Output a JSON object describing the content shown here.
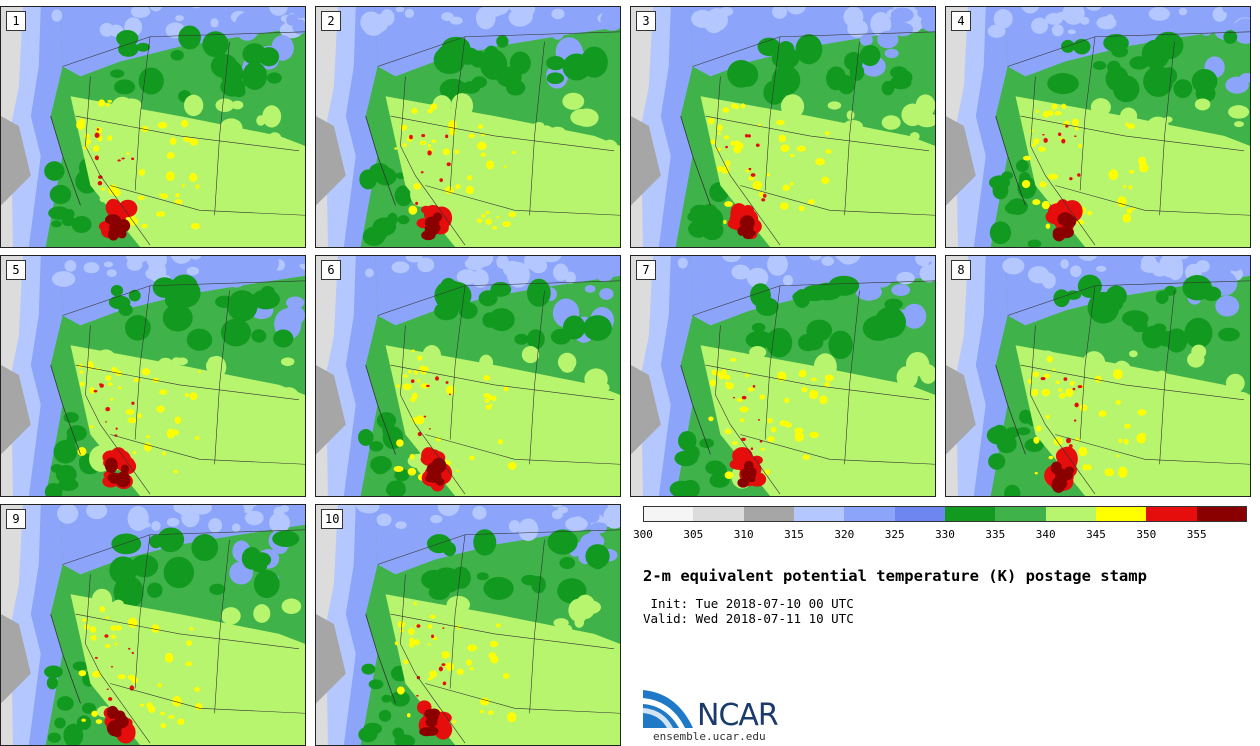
{
  "title": "2-m equivalent potential temperature (K) postage stamp",
  "init_label": " Init: Tue 2018-07-10 00 UTC",
  "valid_label": "Valid: Wed 2018-07-11 10 UTC",
  "panels": [
    {
      "label": "1"
    },
    {
      "label": "2"
    },
    {
      "label": "3"
    },
    {
      "label": "4"
    },
    {
      "label": "5"
    },
    {
      "label": "6"
    },
    {
      "label": "7"
    },
    {
      "label": "8"
    },
    {
      "label": "9"
    },
    {
      "label": "10"
    }
  ],
  "colorbar": {
    "unit": "K",
    "ticks": [
      "300",
      "305",
      "310",
      "315",
      "320",
      "325",
      "330",
      "335",
      "340",
      "345",
      "350",
      "355"
    ],
    "colors": [
      "#f5f5f5",
      "#dcdcdc",
      "#a6a6a6",
      "#b4c8ff",
      "#8ca5fa",
      "#6e87f0",
      "#119a1f",
      "#3fb24a",
      "#b7f56e",
      "#ffff00",
      "#e60d0d",
      "#8a0000"
    ]
  },
  "logo": {
    "name": "NCAR",
    "url": "ensemble.ucar.edu"
  }
}
